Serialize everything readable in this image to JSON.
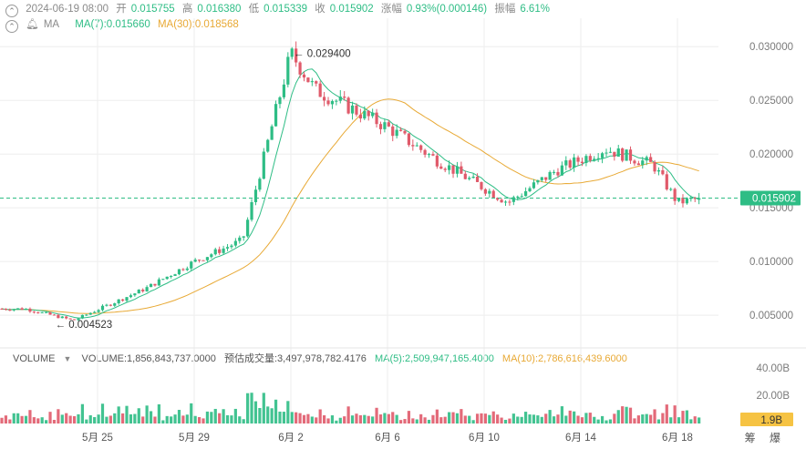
{
  "header": {
    "datetime": "2024-06-19 08:00",
    "open_label": "开",
    "open": "0.015755",
    "high_label": "高",
    "high": "0.016380",
    "low_label": "低",
    "low": "0.015339",
    "close_label": "收",
    "close": "0.015902",
    "change_label": "涨幅",
    "change": "0.93%(0.000146)",
    "amplitude_label": "振幅",
    "amplitude": "6.61%"
  },
  "ma_row": {
    "label": "MA",
    "ma7": "MA(7):0.015660",
    "ma30": "MA(30):0.018568"
  },
  "volume_row": {
    "label": "VOLUME",
    "volume": "VOLUME:1,856,843,737.0000",
    "estimated": "预估成交量:3,497,978,782.4176",
    "ma5": "MA(5):2,509,947,165.4000",
    "ma10": "MA(10):2,786,616,439.6000"
  },
  "price_axis": [
    "0.030000",
    "0.025000",
    "0.020000",
    "0.015000",
    "0.010000",
    "0.005000"
  ],
  "volume_axis": [
    "40.00B",
    "20.00B"
  ],
  "volume_badge": "1.9B",
  "current_price_label": "0.015902",
  "annotations": {
    "high": "0.029400",
    "low": "0.004523"
  },
  "x_labels": [
    "5月 25",
    "5月 29",
    "6月 2",
    "6月 6",
    "6月 10",
    "6月 14",
    "6月 18"
  ],
  "right_corner": "筹 爆",
  "colors": {
    "up": "#2ebd85",
    "down": "#e05a6a",
    "ma30": "#e8a935",
    "grid": "#eeeeee"
  },
  "chart_data": {
    "type": "candlestick",
    "y_range": [
      0.0023,
      0.0318
    ],
    "current_price": 0.015902,
    "x_ticks": [
      "5月 25",
      "5月 29",
      "6月 2",
      "6月 6",
      "6月 10",
      "6月 14",
      "6月 18"
    ],
    "key_points": [
      {
        "date": "5月 22",
        "price": 0.0056
      },
      {
        "date": "5月 24",
        "price": 0.004523
      },
      {
        "date": "5月 27",
        "price": 0.0075
      },
      {
        "date": "5月 29",
        "price": 0.01
      },
      {
        "date": "5月 31",
        "price": 0.012
      },
      {
        "date": "6月 2",
        "price": 0.0294
      },
      {
        "date": "6月 3",
        "price": 0.026
      },
      {
        "date": "6月 6",
        "price": 0.0225
      },
      {
        "date": "6月 8",
        "price": 0.0195
      },
      {
        "date": "6月 11",
        "price": 0.0155
      },
      {
        "date": "6月 13",
        "price": 0.0185
      },
      {
        "date": "6月 15",
        "price": 0.0205
      },
      {
        "date": "6月 17",
        "price": 0.019
      },
      {
        "date": "6月 18",
        "price": 0.0155
      },
      {
        "date": "6月 19",
        "price": 0.015902
      }
    ],
    "ma7": 0.01566,
    "ma30": 0.018568
  }
}
